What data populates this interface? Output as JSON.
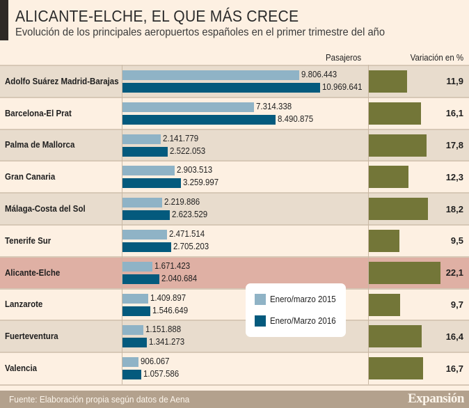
{
  "header": {
    "title": "ALICANTE-ELCHE, EL QUE MÁS CRECE",
    "subtitle": "Evolución de los principales aeropuertos españoles en el primer trimestre del año",
    "col_passengers": "Pasajeros",
    "col_variation": "Variación en %"
  },
  "legend": {
    "items": [
      {
        "label": "Enero/marzo 2015",
        "color": "#8fb3c6"
      },
      {
        "label": "Enero/Marzo 2016",
        "color": "#045a7d"
      }
    ]
  },
  "footer": {
    "source": "Fuente: Elaboración propia según datos de Aena",
    "brand": "Expansión"
  },
  "colors": {
    "y2015": "#8fb3c6",
    "y2016": "#045a7d",
    "variation": "#737638",
    "highlight_row": "#dfb0a4"
  },
  "chart_data": {
    "type": "bar",
    "title": "ALICANTE-ELCHE, EL QUE MÁS CRECE",
    "subtitle": "Evolución de los principales aeropuertos españoles en el primer trimestre del año",
    "orientation": "horizontal",
    "categories": [
      "Adolfo Suárez Madrid-Barajas",
      "Barcelona-El Prat",
      "Palma de Mallorca",
      "Gran Canaria",
      "Málaga-Costa del Sol",
      "Tenerife Sur",
      "Alicante-Elche",
      "Lanzarote",
      "Fuerteventura",
      "Valencia"
    ],
    "highlighted_category": "Alicante-Elche",
    "series": [
      {
        "name": "Enero/marzo 2015",
        "values": [
          9806443,
          7314338,
          2141779,
          2903513,
          2219886,
          2471514,
          1671423,
          1409897,
          1151888,
          906067
        ],
        "labels": [
          "9.806.443",
          "7.314.338",
          "2.141.779",
          "2.903.513",
          "2.219.886",
          "2.471.514",
          "1.671.423",
          "1.409.897",
          "1.151.888",
          "906.067"
        ]
      },
      {
        "name": "Enero/Marzo 2016",
        "values": [
          10969641,
          8490875,
          2522053,
          3259997,
          2623529,
          2705203,
          2040684,
          1546649,
          1341273,
          1057586
        ],
        "labels": [
          "10.969.641",
          "8.490.875",
          "2.522.053",
          "3.259.997",
          "2.623.529",
          "2.705.203",
          "2.040.684",
          "1.546.649",
          "1.341.273",
          "1.057.586"
        ]
      },
      {
        "name": "Variación en %",
        "values": [
          11.9,
          16.1,
          17.8,
          12.3,
          18.2,
          9.5,
          22.1,
          9.7,
          16.4,
          16.7
        ],
        "labels": [
          "11,9",
          "16,1",
          "17,8",
          "12,3",
          "18,2",
          "9,5",
          "22,1",
          "9,7",
          "16,4",
          "16,7"
        ]
      }
    ],
    "xlabel": "Pasajeros",
    "variation_label": "Variación en %",
    "passengers_range": [
      0,
      11000000
    ],
    "variation_range": [
      0,
      22.1
    ],
    "legend_position": "bottom-center",
    "grid": false,
    "source": "Fuente: Elaboración propia según datos de Aena"
  }
}
